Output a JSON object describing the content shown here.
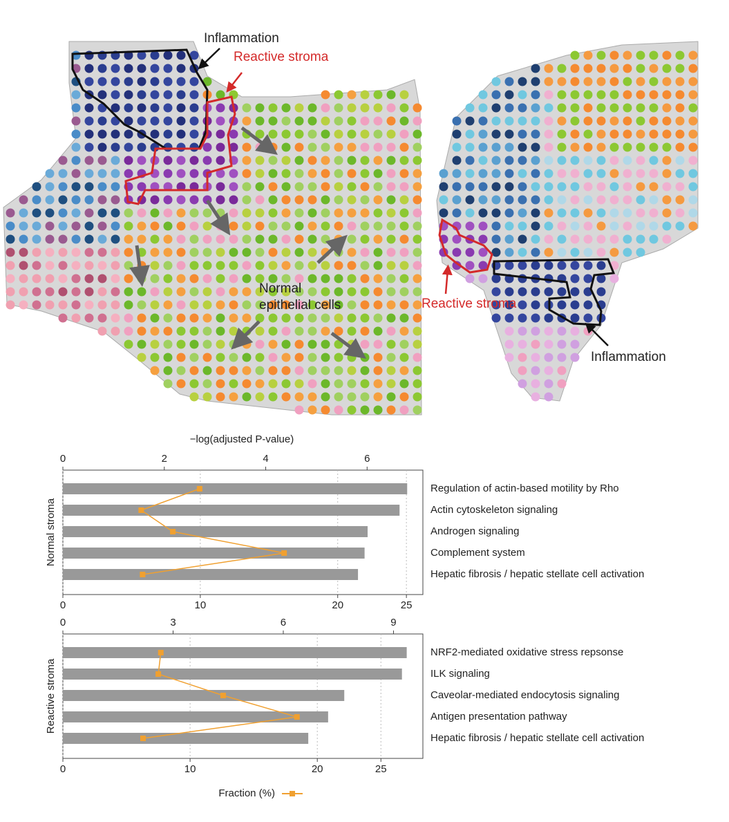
{
  "figure": {
    "annotations": {
      "inflammation_left": "Inflammation",
      "reactive_left": "Reactive stroma",
      "normal_line1": "Normal",
      "normal_line2": "epithelial cells",
      "reactive_right": "Reactive stroma",
      "inflammation_right": "Inflammation"
    }
  },
  "chart_data": [
    {
      "type": "bar",
      "ylabel": "Normal stroma",
      "x2label": "−log(adjusted P-value)",
      "categories": [
        "Regulation of actin-based motility by Rho",
        "Actin cytoskeleton signaling",
        "Androgen signaling",
        "Complement system",
        "Hepatic fibrosis / hepatic stellate cell activation"
      ],
      "series": [
        {
          "color": "#999999",
          "axis": "x2",
          "values": [
            6.79,
            6.64,
            6.01,
            5.95,
            5.82
          ]
        },
        {
          "color": "#f0a030",
          "values": [
            9.95,
            5.7,
            8.0,
            16.1,
            5.8
          ]
        }
      ],
      "xlim": [
        0,
        26.2
      ],
      "xticks": [
        0,
        10,
        20,
        25
      ],
      "x2lim": [
        0,
        7.1
      ],
      "x2ticks": [
        0,
        2,
        4,
        6
      ],
      "grid": true
    },
    {
      "type": "bar",
      "ylabel": "Reactive stroma",
      "categories": [
        "NRF2-mediated oxidative stress repsonse",
        "ILK signaling",
        "Caveolar-mediated endocytosis signaling",
        "Antigen presentation pathway",
        "Hepatic fibrosis / hepatic stellate cell activation"
      ],
      "series": [
        {
          "color": "#999999",
          "axis": "x2",
          "values": [
            9.36,
            9.23,
            7.66,
            7.22,
            6.68
          ]
        },
        {
          "name": "Fraction (%)",
          "color": "#f0a030",
          "values": [
            7.7,
            7.5,
            12.6,
            18.4,
            6.3
          ]
        }
      ],
      "xlim": [
        0,
        28.3
      ],
      "xticks": [
        0,
        10,
        20,
        25
      ],
      "x2lim": [
        0,
        9.8
      ],
      "x2ticks": [
        0,
        3,
        6,
        9
      ],
      "grid": true
    }
  ]
}
